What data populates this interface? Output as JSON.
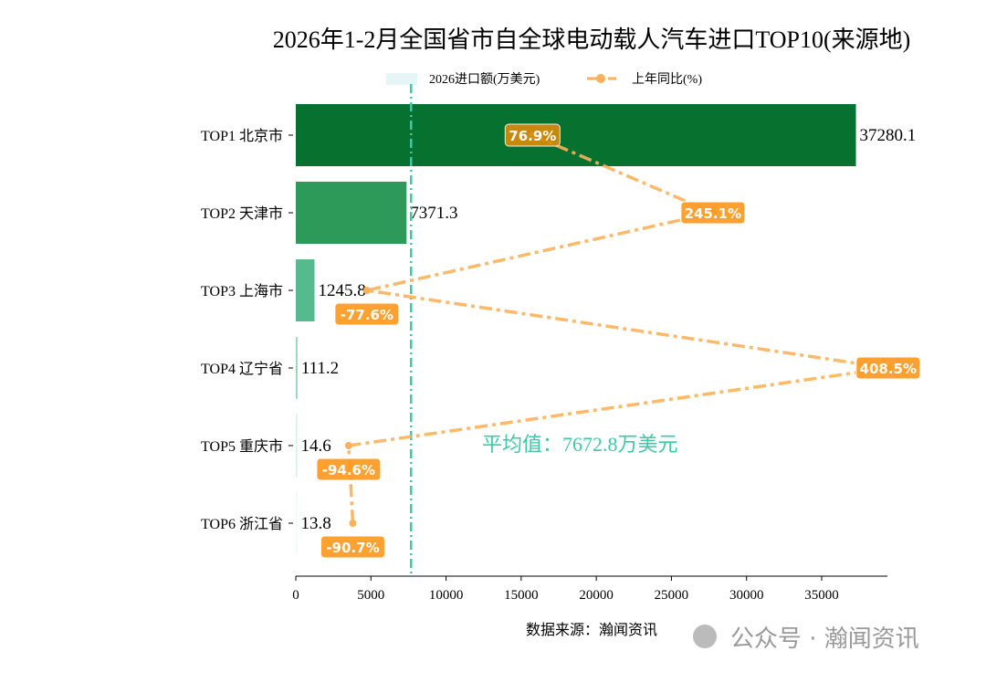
{
  "chart_data": {
    "type": "bar",
    "orientation": "horizontal",
    "title": "2026年1-2月全国省市自全球电动载人汽车进口TOP10(来源地)",
    "categories": [
      "TOP1 北京市",
      "TOP2 天津市",
      "TOP3 上海市",
      "TOP4 辽宁省",
      "TOP5 重庆市",
      "TOP6 浙江省"
    ],
    "series": [
      {
        "name": "2026进口额(万美元)",
        "type": "bar",
        "values": [
          37280.1,
          7371.3,
          1245.8,
          111.2,
          14.6,
          13.8
        ],
        "value_labels": [
          "37280.1",
          "7371.3",
          "1245.8",
          "111.2",
          "14.6",
          "13.8"
        ],
        "colors": [
          "#077230",
          "#2e9a5a",
          "#56ba8f",
          "#8fd8bb",
          "#d4f0e6",
          "#eef9f5"
        ]
      },
      {
        "name": "上年同比(%)",
        "type": "line",
        "values": [
          76.9,
          245.1,
          -77.6,
          408.5,
          -94.6,
          -90.7
        ],
        "value_labels": [
          "76.9%",
          "245.1%",
          "-77.6%",
          "408.5%",
          "-94.6%",
          "-90.7%"
        ],
        "color": "#fdb15a",
        "label_color": "#ff9a1f"
      }
    ],
    "xlim": [
      0,
      39000
    ],
    "xticks": [
      "0",
      "5000",
      "10000",
      "15000",
      "20000",
      "25000",
      "30000",
      "35000"
    ],
    "mean": {
      "value": 7672.8,
      "label": "平均值：7672.8万美元",
      "color": "#3cc9a8"
    },
    "legend": "top-center",
    "grid": false,
    "xlabel": "数据来源：瀚闻资讯"
  },
  "watermark": "公众号 · 瀚闻资讯"
}
